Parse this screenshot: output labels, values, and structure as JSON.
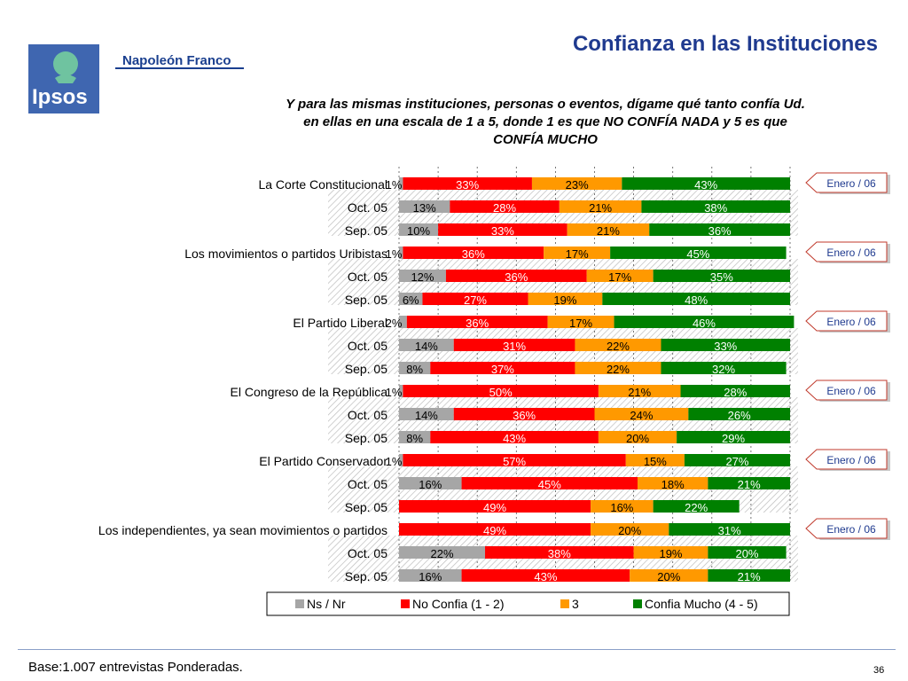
{
  "header": {
    "title": "Confianza en las Instituciones",
    "brand": "Napoleón Franco",
    "logo_text": "Ipsos",
    "question": "Y para las mismas instituciones, personas o eventos, dígame qué tanto confía Ud. en ellas en una escala de 1 a 5, donde 1 es que NO CONFÍA NADA y 5 es que CONFÍA MUCHO"
  },
  "footer": {
    "base": "Base:1.007 entrevistas Ponderadas.",
    "page": "36"
  },
  "colors": {
    "ns": "#a6a6a6",
    "no_confia": "#ff0000",
    "tres": "#ff9900",
    "confia": "#008000",
    "title": "#1f3a8f"
  },
  "chart_data": {
    "type": "bar",
    "orientation": "horizontal",
    "stacked": "percent",
    "xlim": [
      0,
      100
    ],
    "grid": true,
    "legend_position": "bottom",
    "badge_label": "Enero / 06",
    "series_names": [
      "Ns / Nr",
      "No Confia (1 - 2)",
      "3",
      "Confia Mucho (4 - 5)"
    ],
    "groups": [
      {
        "name": "La Corte Constitucional",
        "rows": [
          {
            "label": "",
            "values": [
              1,
              33,
              23,
              43
            ]
          },
          {
            "label": "Oct. 05",
            "values": [
              13,
              28,
              21,
              38
            ]
          },
          {
            "label": "Sep. 05",
            "values": [
              10,
              33,
              21,
              36
            ]
          }
        ]
      },
      {
        "name": "Los movimientos o partidos Uribistas",
        "rows": [
          {
            "label": "",
            "values": [
              1,
              36,
              17,
              45
            ]
          },
          {
            "label": "Oct. 05",
            "values": [
              12,
              36,
              17,
              35
            ]
          },
          {
            "label": "Sep. 05",
            "values": [
              6,
              27,
              19,
              48
            ]
          }
        ]
      },
      {
        "name": "El Partido Liberal",
        "rows": [
          {
            "label": "",
            "values": [
              2,
              36,
              17,
              46
            ]
          },
          {
            "label": "Oct. 05",
            "values": [
              14,
              31,
              22,
              33
            ]
          },
          {
            "label": "Sep. 05",
            "values": [
              8,
              37,
              22,
              32
            ]
          }
        ]
      },
      {
        "name": "El Congreso de la República",
        "rows": [
          {
            "label": "",
            "values": [
              1,
              50,
              21,
              28
            ]
          },
          {
            "label": "Oct. 05",
            "values": [
              14,
              36,
              24,
              26
            ]
          },
          {
            "label": "Sep. 05",
            "values": [
              8,
              43,
              20,
              29
            ]
          }
        ]
      },
      {
        "name": "El Partido Conservador",
        "rows": [
          {
            "label": "",
            "values": [
              1,
              57,
              15,
              27
            ]
          },
          {
            "label": "Oct. 05",
            "values": [
              16,
              45,
              18,
              21
            ]
          },
          {
            "label": "Sep. 05",
            "values": [
              null,
              49,
              16,
              22
            ]
          }
        ]
      },
      {
        "name": "Los independientes, ya sean movimientos o partidos",
        "rows": [
          {
            "label": "",
            "values": [
              null,
              49,
              20,
              31
            ]
          },
          {
            "label": "Oct. 05",
            "values": [
              22,
              38,
              19,
              20
            ]
          },
          {
            "label": "Sep. 05",
            "values": [
              16,
              43,
              20,
              21
            ]
          }
        ]
      }
    ]
  }
}
